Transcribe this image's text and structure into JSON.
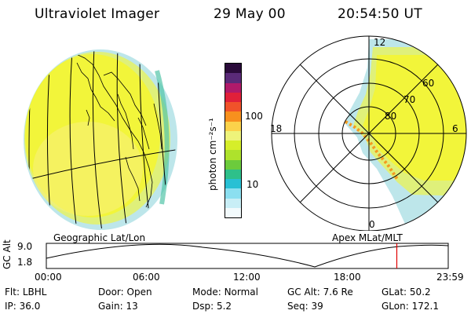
{
  "header": {
    "instrument": "Ultraviolet Imager",
    "date": "29 May 00",
    "time": "20:54:50 UT"
  },
  "colorbar": {
    "unit_label": "photon cm⁻²s⁻¹",
    "ticks": [
      "100",
      "10"
    ],
    "colors": [
      "#2a0a3a",
      "#5a2a78",
      "#b01a6a",
      "#e0203a",
      "#f0522a",
      "#f7901e",
      "#fbd24a",
      "#eef37a",
      "#d6ee2a",
      "#aee22c",
      "#6ccb3c",
      "#2ec08a",
      "#28c0d4",
      "#8bdff0",
      "#c8eef6",
      "#f2fafc"
    ]
  },
  "left_map": {
    "caption": "Geographic Lat/Lon"
  },
  "polar_map": {
    "caption": "Apex MLat/MLT",
    "mlt_labels": {
      "top": "12",
      "left": "18",
      "right": "6",
      "bottom": "0"
    },
    "lat_labels": [
      "60",
      "70",
      "80"
    ]
  },
  "timeline": {
    "axis_label": "GC Alt",
    "y_ticks": [
      "9.0",
      "1.8"
    ],
    "x_ticks": [
      "00:00",
      "06:00",
      "12:00",
      "18:00",
      "23:59"
    ],
    "marker_time": "20:54:50"
  },
  "info": {
    "row1": [
      {
        "label": "Flt:",
        "value": "LBHL"
      },
      {
        "label": "Door:",
        "value": "Open"
      },
      {
        "label": "Mode:",
        "value": "Normal"
      },
      {
        "label": "GC Alt:",
        "value": "7.6 Re"
      },
      {
        "label": "GLat:",
        "value": "50.2"
      }
    ],
    "row2": [
      {
        "label": "IP:",
        "value": "36.0"
      },
      {
        "label": "Gain:",
        "value": "13"
      },
      {
        "label": "Dsp:",
        "value": "5.2"
      },
      {
        "label": "Seq:",
        "value": "39"
      },
      {
        "label": "GLon:",
        "value": "172.1"
      }
    ]
  }
}
